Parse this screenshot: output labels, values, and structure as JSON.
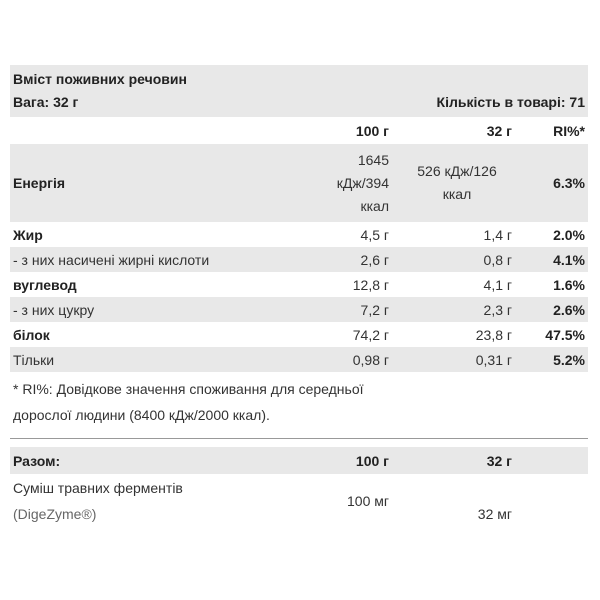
{
  "header": {
    "title": "Вміст поживних речовин",
    "weight": "Вага: 32 г",
    "count": "Кількість в товарі: 71"
  },
  "table": {
    "columns": [
      "100 г",
      "32 г",
      "RI%*"
    ],
    "rows": [
      [
        "Енергія",
        "1645 кДж/394 ккал",
        "526 кДж/126 ккал",
        "6.3%"
      ],
      [
        "Жир",
        "4,5 г",
        "1,4 г",
        "2.0%"
      ],
      [
        "- з них насичені жирні кислоти",
        "2,6 г",
        "0,8 г",
        "4.1%"
      ],
      [
        "вуглевод",
        "12,8 г",
        "4,1 г",
        "1.6%"
      ],
      [
        "- з них цукру",
        "7,2 г",
        "2,3 г",
        "2.6%"
      ],
      [
        "білок",
        "74,2 г",
        "23,8 г",
        "47.5%"
      ],
      [
        "Тільки",
        "0,98 г",
        "0,31 г",
        "5.2%"
      ]
    ]
  },
  "footnote": "* RI%: Довідкове значення споживання для середньої дорослої людини (8400 кДж/2000 ккал).",
  "summary": {
    "columns": [
      "Разом:",
      "100 г",
      "32 г"
    ],
    "rows": [
      {
        "name": "Суміш травних ферментів",
        "note": "(DigeZyme®)",
        "per100": "100 мг",
        "perServing": "32 мг"
      }
    ]
  }
}
